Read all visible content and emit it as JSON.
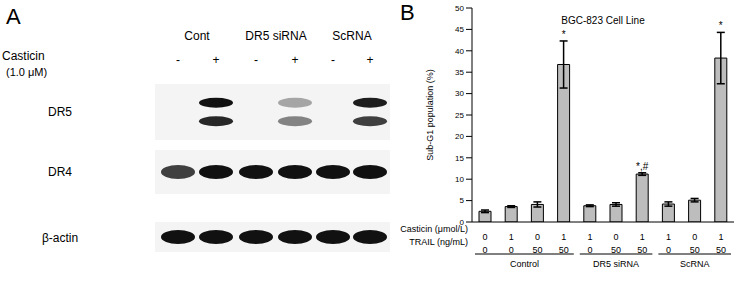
{
  "panel_a": {
    "label": "A",
    "row_header": "Casticin",
    "row_header_unit": "(1.0 μM)",
    "groups": [
      "Cont",
      "DR5 siRNA",
      "ScRNA"
    ],
    "treatment": [
      "-",
      "+",
      "-",
      "+",
      "-",
      "+"
    ],
    "blots": [
      {
        "name": "DR5",
        "bands": [
          [
            0,
            1,
            0,
            0.35,
            0,
            0.95
          ],
          [
            0,
            0.9,
            0,
            0.5,
            0,
            0.8
          ]
        ]
      },
      {
        "name": "DR4",
        "bands": [
          [
            0.8,
            1,
            1,
            1,
            1,
            1
          ]
        ]
      },
      {
        "name": "β-actin",
        "bands": [
          [
            1,
            1,
            1,
            1,
            1,
            1
          ]
        ]
      }
    ]
  },
  "chart_data": {
    "type": "bar",
    "panel_label": "B",
    "title": "BGC-823 Cell Line",
    "y_label": "Sub-G1 population (%)",
    "values": [
      2.5,
      3.6,
      4.1,
      36.8,
      3.8,
      4.1,
      11.2,
      4.2,
      5.1,
      38.3
    ],
    "errors": [
      0.3,
      0.2,
      0.6,
      5.5,
      0.2,
      0.4,
      0.3,
      0.5,
      0.4,
      6.0
    ],
    "annotations": [
      null,
      null,
      null,
      "*",
      null,
      null,
      "*,#",
      null,
      null,
      "*"
    ],
    "x_rows": [
      {
        "label": "Casticin (μmol/L)",
        "values": [
          0,
          1,
          0,
          1,
          1,
          0,
          1,
          1,
          0,
          1
        ]
      },
      {
        "label": "TRAIL (ng/mL)",
        "values": [
          0,
          0,
          50,
          50,
          0,
          50,
          50,
          0,
          50,
          50
        ]
      }
    ],
    "groups": [
      {
        "label": "Control",
        "start": 0,
        "end": 3
      },
      {
        "label": "DR5 siRNA",
        "start": 4,
        "end": 6
      },
      {
        "label": "ScRNA",
        "start": 7,
        "end": 9
      }
    ],
    "color": "#bdbdbd",
    "ylim": [
      0,
      50
    ],
    "yticks": [
      0,
      5,
      10,
      15,
      20,
      25,
      30,
      35,
      40,
      45,
      50
    ],
    "grid": false
  }
}
